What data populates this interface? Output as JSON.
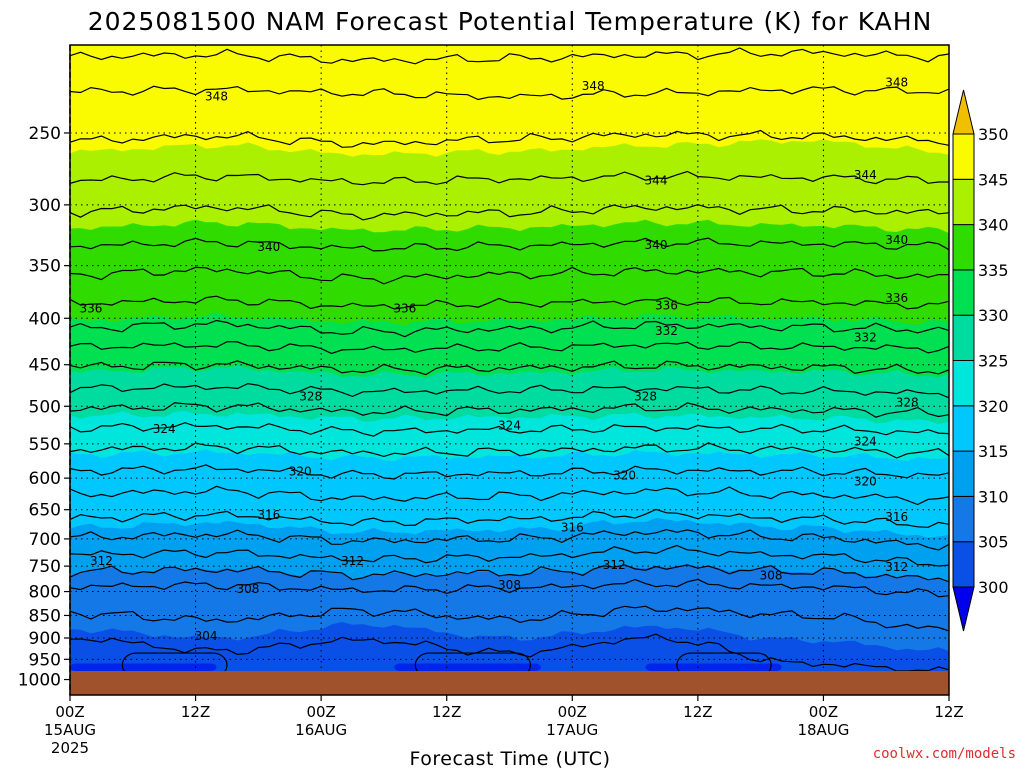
{
  "title": "2025081500 NAM Forecast Potential Temperature (K) for KAHN",
  "credit": "coolwx.com/models",
  "chart_data": {
    "type": "heatmap",
    "title": "2025081500 NAM Forecast Potential Temperature (K) for KAHN",
    "xlabel": "Forecast Time (UTC)",
    "ylabel": "",
    "x_ticks": [
      {
        "label": "00Z",
        "sub": "15AUG",
        "sub2": "2025",
        "hour": 0
      },
      {
        "label": "12Z",
        "sub": "",
        "sub2": "",
        "hour": 12
      },
      {
        "label": "00Z",
        "sub": "16AUG",
        "sub2": "",
        "hour": 24
      },
      {
        "label": "12Z",
        "sub": "",
        "sub2": "",
        "hour": 36
      },
      {
        "label": "00Z",
        "sub": "17AUG",
        "sub2": "",
        "hour": 48
      },
      {
        "label": "12Z",
        "sub": "",
        "sub2": "",
        "hour": 60
      },
      {
        "label": "00Z",
        "sub": "18AUG",
        "sub2": "",
        "hour": 72
      },
      {
        "label": "12Z",
        "sub": "",
        "sub2": "",
        "hour": 84
      }
    ],
    "xlim": [
      0,
      84
    ],
    "y_ticks": [
      250,
      300,
      350,
      400,
      450,
      500,
      550,
      600,
      650,
      700,
      750,
      800,
      850,
      900,
      950,
      1000
    ],
    "ylim": [
      200,
      1040
    ],
    "y_scale": "log (pressure, hPa)",
    "colorbar": {
      "levels": [
        300,
        305,
        310,
        315,
        320,
        325,
        330,
        335,
        340,
        345,
        350
      ],
      "colors": [
        "#0000ee",
        "#0a50e6",
        "#1478e6",
        "#00a0f0",
        "#00c8ff",
        "#00e6dc",
        "#00dca0",
        "#00e050",
        "#30dc00",
        "#aaf000",
        "#fafa00",
        "#f0c000"
      ],
      "extend": "both"
    },
    "series": [
      {
        "level": 348,
        "values": [
          225,
          224,
          226,
          228,
          226,
          224,
          225
        ]
      },
      {
        "level": 344,
        "values": [
          282,
          279,
          283,
          281,
          279,
          280,
          282
        ]
      },
      {
        "level": 340,
        "values": [
          333,
          330,
          335,
          333,
          330,
          331,
          333
        ]
      },
      {
        "level": 336,
        "values": [
          385,
          382,
          388,
          385,
          383,
          384,
          387
        ]
      },
      {
        "level": 332,
        "values": [
          430,
          428,
          433,
          431,
          428,
          430,
          432
        ]
      },
      {
        "level": 328,
        "values": [
          478,
          476,
          482,
          480,
          478,
          481,
          484
        ]
      },
      {
        "level": 324,
        "values": [
          528,
          526,
          533,
          531,
          528,
          530,
          535
        ]
      },
      {
        "level": 320,
        "values": [
          589,
          586,
          595,
          593,
          588,
          590,
          596
        ]
      },
      {
        "level": 316,
        "values": [
          664,
          659,
          671,
          666,
          657,
          665,
          676
        ]
      },
      {
        "level": 312,
        "values": [
          728,
          725,
          737,
          733,
          720,
          730,
          745
        ]
      },
      {
        "level": 308,
        "values": [
          790,
          787,
          797,
          793,
          784,
          790,
          805
        ]
      },
      {
        "level": 304,
        "values": [
          900,
          930,
          905,
          935,
          900,
          960,
          980
        ]
      }
    ],
    "series_hours": [
      0,
      14,
      28,
      42,
      56,
      70,
      84
    ],
    "contour_labels": [
      {
        "text": "348",
        "hour": 14,
        "p": 228
      },
      {
        "text": "348",
        "hour": 50,
        "p": 222
      },
      {
        "text": "348",
        "hour": 79,
        "p": 220
      },
      {
        "text": "344",
        "hour": 56,
        "p": 282
      },
      {
        "text": "344",
        "hour": 76,
        "p": 278
      },
      {
        "text": "340",
        "hour": 19,
        "p": 334
      },
      {
        "text": "340",
        "hour": 56,
        "p": 332
      },
      {
        "text": "340",
        "hour": 79,
        "p": 328
      },
      {
        "text": "336",
        "hour": 2,
        "p": 390
      },
      {
        "text": "336",
        "hour": 32,
        "p": 390
      },
      {
        "text": "336",
        "hour": 57,
        "p": 387
      },
      {
        "text": "336",
        "hour": 79,
        "p": 380
      },
      {
        "text": "332",
        "hour": 57,
        "p": 413
      },
      {
        "text": "332",
        "hour": 76,
        "p": 420
      },
      {
        "text": "328",
        "hour": 23,
        "p": 488
      },
      {
        "text": "328",
        "hour": 55,
        "p": 488
      },
      {
        "text": "328",
        "hour": 80,
        "p": 495
      },
      {
        "text": "324",
        "hour": 9,
        "p": 530
      },
      {
        "text": "324",
        "hour": 42,
        "p": 525
      },
      {
        "text": "324",
        "hour": 76,
        "p": 547
      },
      {
        "text": "320",
        "hour": 22,
        "p": 590
      },
      {
        "text": "320",
        "hour": 53,
        "p": 596
      },
      {
        "text": "320",
        "hour": 76,
        "p": 605
      },
      {
        "text": "316",
        "hour": 19,
        "p": 659
      },
      {
        "text": "316",
        "hour": 48,
        "p": 680
      },
      {
        "text": "316",
        "hour": 79,
        "p": 662
      },
      {
        "text": "312",
        "hour": 3,
        "p": 740
      },
      {
        "text": "312",
        "hour": 27,
        "p": 740
      },
      {
        "text": "312",
        "hour": 52,
        "p": 748
      },
      {
        "text": "312",
        "hour": 79,
        "p": 752
      },
      {
        "text": "308",
        "hour": 17,
        "p": 795
      },
      {
        "text": "308",
        "hour": 42,
        "p": 787
      },
      {
        "text": "308",
        "hour": 67,
        "p": 768
      },
      {
        "text": "304",
        "hour": 13,
        "p": 895
      }
    ]
  }
}
